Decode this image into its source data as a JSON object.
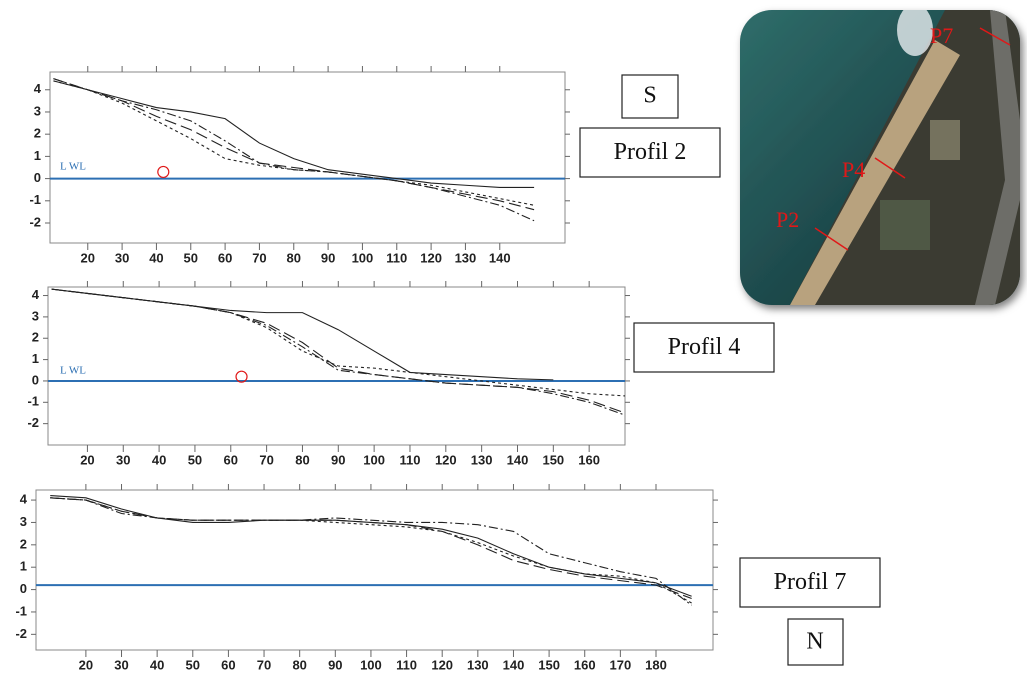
{
  "chart_data": [
    {
      "type": "line",
      "annotation": "L WL",
      "label": "Profil 2",
      "water_level": 0,
      "marker": {
        "x": 42,
        "y": 0.3
      },
      "x": [
        10,
        20,
        30,
        40,
        50,
        60,
        70,
        80,
        90,
        100,
        110,
        120,
        130,
        140,
        150
      ],
      "xlim": [
        9,
        159
      ],
      "xticks": [
        20,
        30,
        40,
        50,
        60,
        70,
        80,
        90,
        100,
        110,
        120,
        130,
        140
      ],
      "ylim": [
        -2.9,
        4.8
      ],
      "yticks": [
        -2,
        -1,
        0,
        1,
        2,
        3,
        4
      ],
      "series": [
        {
          "color": "#222222",
          "dash": "none",
          "values": [
            4.4,
            4.0,
            3.6,
            3.2,
            3.0,
            2.7,
            1.6,
            0.9,
            0.4,
            0.2,
            0.0,
            -0.2,
            -0.3,
            -0.4,
            -0.4
          ]
        },
        {
          "color": "#222222",
          "dash": "12 5",
          "values": [
            4.5,
            4.0,
            3.5,
            2.8,
            2.2,
            1.4,
            0.7,
            0.5,
            0.3,
            0.1,
            -0.1,
            -0.4,
            -0.7,
            -1.0,
            -1.4
          ]
        },
        {
          "color": "#222222",
          "dash": "3 3",
          "values": [
            4.4,
            4.0,
            3.4,
            2.6,
            1.8,
            0.9,
            0.6,
            0.4,
            0.3,
            0.1,
            -0.1,
            -0.3,
            -0.6,
            -0.9,
            -1.2
          ]
        },
        {
          "color": "#222222",
          "dash": "9 3 2 3",
          "values": [
            4.5,
            4.0,
            3.5,
            3.1,
            2.6,
            1.7,
            0.7,
            0.4,
            0.3,
            0.1,
            -0.1,
            -0.4,
            -0.8,
            -1.2,
            -1.9
          ]
        }
      ]
    },
    {
      "type": "line",
      "annotation": "L WL",
      "label": "Profil 4",
      "water_level": 0,
      "marker": {
        "x": 63,
        "y": 0.2
      },
      "x": [
        10,
        20,
        30,
        40,
        50,
        60,
        70,
        80,
        90,
        100,
        110,
        120,
        130,
        140,
        150,
        160,
        170
      ],
      "xlim": [
        9,
        170
      ],
      "xticks": [
        20,
        30,
        40,
        50,
        60,
        70,
        80,
        90,
        100,
        110,
        120,
        130,
        140,
        150,
        160
      ],
      "ylim": [
        -3,
        4.4
      ],
      "yticks": [
        -2,
        -1,
        0,
        1,
        2,
        3,
        4
      ],
      "series": [
        {
          "color": "#222222",
          "dash": "none",
          "values": [
            4.3,
            4.1,
            3.9,
            3.7,
            3.5,
            3.3,
            3.2,
            3.2,
            2.4,
            1.4,
            0.4,
            0.3,
            0.2,
            0.1,
            0.05,
            null,
            null
          ]
        },
        {
          "color": "#222222",
          "dash": "12 5",
          "values": [
            4.3,
            4.1,
            3.9,
            3.7,
            3.5,
            3.2,
            2.7,
            1.8,
            0.6,
            0.3,
            0.1,
            -0.1,
            -0.2,
            -0.3,
            -0.5,
            -0.9,
            -1.5
          ]
        },
        {
          "color": "#222222",
          "dash": "3 3",
          "values": [
            4.3,
            4.1,
            3.9,
            3.7,
            3.5,
            3.2,
            2.5,
            1.4,
            0.7,
            0.6,
            0.4,
            0.2,
            0.0,
            -0.2,
            -0.4,
            -0.6,
            -0.7
          ]
        },
        {
          "color": "#222222",
          "dash": "9 3 2 3",
          "values": [
            4.3,
            4.1,
            3.9,
            3.7,
            3.5,
            3.2,
            2.6,
            1.6,
            0.5,
            0.3,
            0.1,
            -0.1,
            -0.2,
            -0.3,
            -0.6,
            -1.0,
            -1.6
          ]
        }
      ]
    },
    {
      "type": "line",
      "label": "Profil 7",
      "water_level": 0.2,
      "x": [
        10,
        20,
        30,
        40,
        50,
        60,
        70,
        80,
        90,
        100,
        110,
        120,
        130,
        140,
        150,
        160,
        170,
        180,
        190
      ],
      "xlim": [
        6,
        196
      ],
      "xticks": [
        20,
        30,
        40,
        50,
        60,
        70,
        80,
        90,
        100,
        110,
        120,
        130,
        140,
        150,
        160,
        170,
        180
      ],
      "ylim": [
        -2.7,
        4.45
      ],
      "yticks": [
        -2,
        -1,
        0,
        1,
        2,
        3,
        4
      ],
      "series": [
        {
          "color": "#222222",
          "dash": "none",
          "values": [
            4.2,
            4.1,
            3.6,
            3.2,
            3.0,
            3.0,
            3.1,
            3.1,
            3.1,
            3.0,
            2.9,
            2.7,
            2.3,
            1.6,
            1.0,
            0.7,
            0.5,
            0.3,
            -0.3
          ]
        },
        {
          "color": "#222222",
          "dash": "12 5",
          "values": [
            4.1,
            4.0,
            3.5,
            3.2,
            3.1,
            3.1,
            3.1,
            3.1,
            3.1,
            3.0,
            2.9,
            2.6,
            2.0,
            1.3,
            0.9,
            0.6,
            0.4,
            0.2,
            -0.4
          ]
        },
        {
          "color": "#222222",
          "dash": "3 3",
          "values": [
            4.1,
            4.0,
            3.5,
            3.2,
            3.1,
            3.1,
            3.1,
            3.1,
            3.0,
            2.9,
            2.8,
            2.6,
            2.1,
            1.5,
            1.0,
            0.7,
            0.6,
            0.3,
            -0.6
          ]
        },
        {
          "color": "#222222",
          "dash": "9 3 2 3",
          "values": [
            4.1,
            4.0,
            3.4,
            3.2,
            3.1,
            3.1,
            3.1,
            3.1,
            3.2,
            3.1,
            3.0,
            3.0,
            2.9,
            2.6,
            1.6,
            1.2,
            0.8,
            0.5,
            -0.7
          ]
        }
      ]
    }
  ],
  "labels": {
    "south": "S",
    "north": "N"
  },
  "map": {
    "points": [
      "P7",
      "P4",
      "P2"
    ]
  }
}
